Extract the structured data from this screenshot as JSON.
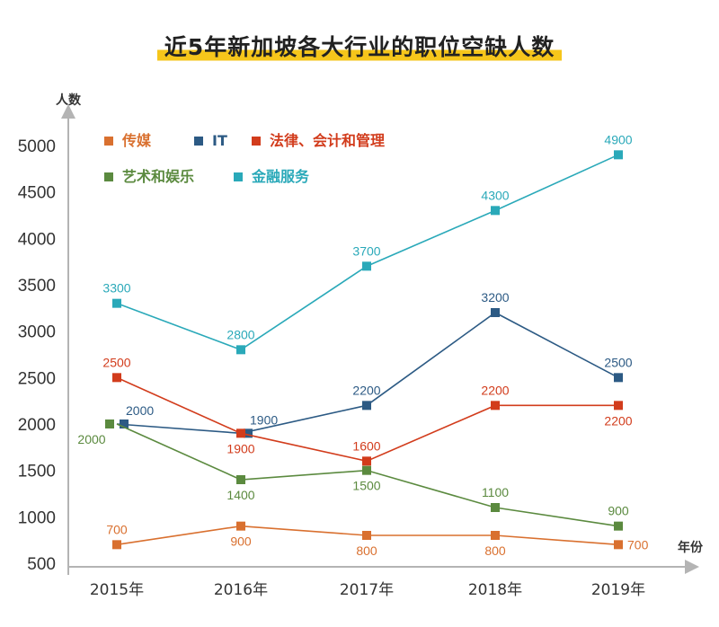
{
  "chart_data": {
    "type": "line",
    "title": "近5年新加坡各大行业的职位空缺人数",
    "xlabel": "年份",
    "ylabel": "人数",
    "x": [
      "2015年",
      "2016年",
      "2017年",
      "2018年",
      "2019年"
    ],
    "yticks": [
      "5000",
      "4500",
      "4000",
      "3500",
      "3000",
      "2500",
      "2000",
      "1500",
      "1000",
      "500"
    ],
    "ylim": [
      500,
      5000
    ],
    "grid": false,
    "legend_position": "top-left",
    "series": [
      {
        "name": "传媒",
        "color": "#d9702f",
        "values": [
          700,
          900,
          800,
          800,
          700
        ],
        "label_pos": [
          "above",
          "below",
          "below",
          "below",
          "right"
        ]
      },
      {
        "name": "IT",
        "color": "#2c5a84",
        "values": [
          2000,
          1900,
          2200,
          3200,
          2500
        ],
        "label_pos": [
          "above-right",
          "above-right",
          "above",
          "above",
          "above"
        ]
      },
      {
        "name": "法律、会计和管理",
        "color": "#d23c1c",
        "values": [
          2500,
          1900,
          1600,
          2200,
          2200
        ],
        "label_pos": [
          "above",
          "below",
          "above",
          "above",
          "below"
        ]
      },
      {
        "name": "艺术和娱乐",
        "color": "#5b8a3f",
        "values": [
          2000,
          1400,
          1500,
          1100,
          900
        ],
        "label_pos": [
          "below-left",
          "below",
          "below",
          "above",
          "above"
        ]
      },
      {
        "name": "金融服务",
        "color": "#2aa9b9",
        "values": [
          3300,
          2800,
          3700,
          4300,
          4900
        ],
        "label_pos": [
          "above",
          "above",
          "above",
          "above",
          "above"
        ]
      }
    ],
    "legend": [
      {
        "name": "传媒",
        "color": "#d9702f"
      },
      {
        "name": "IT",
        "color": "#2c5a84"
      },
      {
        "name": "法律、会计和管理",
        "color": "#d23c1c"
      },
      {
        "name": "艺术和娱乐",
        "color": "#5b8a3f"
      },
      {
        "name": "金融服务",
        "color": "#2aa9b9"
      }
    ]
  },
  "colors": {
    "title_highlight": "#f6c61b",
    "axis": "#b4b4b4",
    "text": "#333333"
  }
}
